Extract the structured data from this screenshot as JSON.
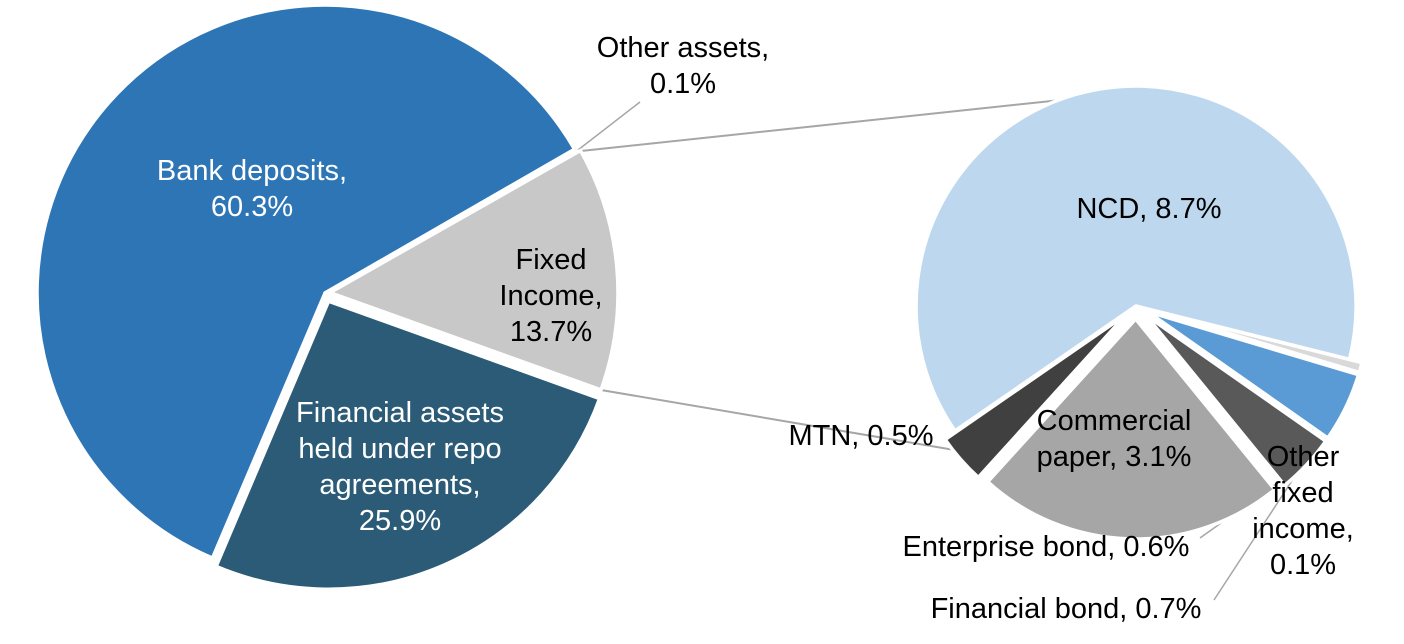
{
  "chart_data": {
    "type": "pie",
    "variant": "pie-of-pie",
    "legend": "none",
    "units": "percent",
    "main_pie": {
      "start_angle_deg": 203,
      "total": 100,
      "slices": [
        {
          "id": "bank-deposits",
          "label": "Bank deposits",
          "value": 60.3,
          "display": "Bank deposits,\n60.3%",
          "color": "#2E75B6",
          "explode": 0
        },
        {
          "id": "other-assets",
          "label": "Other assets",
          "value": 0.1,
          "display": "Other assets,\n0.1%",
          "color": "#BFBFBF",
          "explode": 0
        },
        {
          "id": "fixed-income",
          "label": "Fixed Income",
          "value": 13.7,
          "display": "Fixed\nIncome,\n13.7%",
          "color": "#C8C8C8",
          "explode": 5,
          "note": "aggregate slice expanded in secondary pie"
        },
        {
          "id": "financial-repo",
          "label": "Financial assets held under repo agreements",
          "value": 25.9,
          "display": "Financial assets\nheld under repo\nagreements,\n25.9%",
          "color": "#2B5B76",
          "explode": 9
        }
      ]
    },
    "secondary_pie": {
      "start_angle_deg": 235.4,
      "total": 13.7,
      "parent_slice": "fixed-income",
      "slices": [
        {
          "id": "ncd",
          "label": "NCD",
          "value": 8.7,
          "display": "NCD, 8.7%",
          "color": "#BDD7EE",
          "explode": 0
        },
        {
          "id": "other-fixed-income",
          "label": "Other fixed income",
          "value": 0.1,
          "display": "Other\nfixed\nincome,\n0.1%",
          "color": "#D9D9D9",
          "explode": 13
        },
        {
          "id": "financial-bond",
          "label": "Financial bond",
          "value": 0.7,
          "display": "Financial bond, 0.7%",
          "color": "#5B9BD5",
          "explode": 13
        },
        {
          "id": "enterprise-bond",
          "label": "Enterprise bond",
          "value": 0.6,
          "display": "Enterprise bond, 0.6%",
          "color": "#595959",
          "explode": 13
        },
        {
          "id": "commercial-paper",
          "label": "Commercial paper",
          "value": 3.1,
          "display": "Commercial\npaper, 3.1%",
          "color": "#A6A6A6",
          "explode": 13
        },
        {
          "id": "mtn",
          "label": "MTN",
          "value": 0.5,
          "display": "MTN, 0.5%",
          "color": "#404040",
          "explode": 13
        }
      ]
    },
    "colors": {
      "connector_line": "#A6A6A6",
      "slice_border": "#FFFFFF",
      "label_on_dark": "#FFFFFF",
      "label_default": "#000000"
    }
  }
}
